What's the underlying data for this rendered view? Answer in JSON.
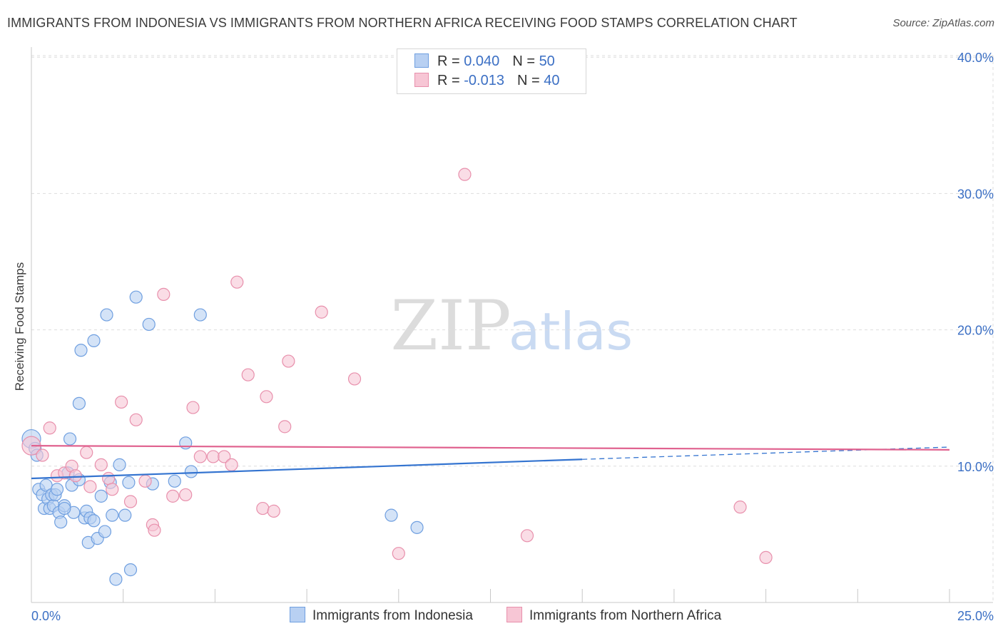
{
  "title": "IMMIGRANTS FROM INDONESIA VS IMMIGRANTS FROM NORTHERN AFRICA RECEIVING FOOD STAMPS CORRELATION CHART",
  "source": "Source: ZipAtlas.com",
  "watermark": {
    "zip": "ZIP",
    "atlas": "atlas"
  },
  "legend": {
    "rows": [
      {
        "r_label": "R = ",
        "r_value": "0.040",
        "n_label": "N = ",
        "n_value": "50"
      },
      {
        "r_label": "R = ",
        "r_value": "-0.013",
        "n_label": "N = ",
        "n_value": "40"
      }
    ]
  },
  "bottom_legend": {
    "series1": "Immigrants from Indonesia",
    "series2": "Immigrants from Northern Africa"
  },
  "colors": {
    "blue_fill": "#b8d0f2",
    "blue_stroke": "#6f9fe0",
    "blue_line": "#3474d0",
    "pink_fill": "#f7c6d5",
    "pink_stroke": "#e890ac",
    "pink_line": "#e0628f",
    "tick_label": "#3b6fc4",
    "grid": "#dddddd"
  },
  "chart_data": {
    "type": "scatter",
    "title": "IMMIGRANTS FROM INDONESIA VS IMMIGRANTS FROM NORTHERN AFRICA RECEIVING FOOD STAMPS CORRELATION CHART",
    "xlabel": "",
    "ylabel": "Receiving Food Stamps",
    "xlim": [
      0,
      25
    ],
    "ylim": [
      0,
      41
    ],
    "x_tick_labels": [
      "0.0%",
      "25.0%"
    ],
    "y_ticks": [
      10,
      20,
      30,
      40
    ],
    "y_tick_labels": [
      "10.0%",
      "20.0%",
      "30.0%",
      "40.0%"
    ],
    "series": [
      {
        "name": "Immigrants from Indonesia",
        "r": 0.04,
        "n": 50,
        "trend": {
          "x0": 0,
          "y0": 9.1,
          "x1": 15,
          "y1": 10.5,
          "dashed_to_x": 25,
          "dashed_to_y": 11.4
        },
        "points": [
          [
            0.0,
            12.0
          ],
          [
            0.1,
            11.3
          ],
          [
            0.15,
            10.8
          ],
          [
            0.2,
            8.3
          ],
          [
            0.3,
            7.9
          ],
          [
            0.35,
            6.9
          ],
          [
            0.4,
            8.6
          ],
          [
            0.45,
            7.6
          ],
          [
            0.5,
            6.9
          ],
          [
            0.55,
            7.9
          ],
          [
            0.6,
            7.1
          ],
          [
            0.65,
            7.9
          ],
          [
            0.7,
            8.3
          ],
          [
            0.75,
            6.6
          ],
          [
            0.8,
            5.9
          ],
          [
            0.9,
            7.1
          ],
          [
            1.0,
            9.5
          ],
          [
            1.05,
            12.0
          ],
          [
            1.1,
            8.6
          ],
          [
            1.15,
            6.6
          ],
          [
            1.3,
            9.0
          ],
          [
            1.3,
            14.6
          ],
          [
            1.35,
            18.5
          ],
          [
            1.45,
            6.2
          ],
          [
            1.5,
            6.7
          ],
          [
            1.55,
            4.4
          ],
          [
            1.6,
            6.2
          ],
          [
            1.7,
            6.0
          ],
          [
            1.7,
            19.2
          ],
          [
            1.8,
            4.7
          ],
          [
            1.9,
            7.8
          ],
          [
            2.0,
            5.2
          ],
          [
            2.05,
            21.1
          ],
          [
            2.15,
            8.8
          ],
          [
            2.2,
            6.4
          ],
          [
            2.3,
            1.7
          ],
          [
            2.4,
            10.1
          ],
          [
            2.55,
            6.4
          ],
          [
            2.7,
            2.4
          ],
          [
            2.85,
            22.4
          ],
          [
            3.2,
            20.4
          ],
          [
            3.3,
            8.7
          ],
          [
            4.2,
            11.7
          ],
          [
            4.35,
            9.6
          ],
          [
            4.6,
            21.1
          ],
          [
            9.8,
            6.4
          ],
          [
            10.5,
            5.5
          ],
          [
            3.9,
            8.9
          ],
          [
            0.9,
            6.9
          ],
          [
            2.65,
            8.8
          ]
        ]
      },
      {
        "name": "Immigrants from Northern Africa",
        "r": -0.013,
        "n": 40,
        "trend": {
          "x0": 0,
          "y0": 11.5,
          "x1": 25,
          "y1": 11.2
        },
        "points": [
          [
            0.0,
            11.5
          ],
          [
            0.3,
            10.8
          ],
          [
            0.5,
            12.8
          ],
          [
            0.7,
            9.3
          ],
          [
            0.9,
            9.5
          ],
          [
            1.1,
            10.0
          ],
          [
            1.2,
            9.3
          ],
          [
            1.5,
            11.0
          ],
          [
            1.6,
            8.5
          ],
          [
            1.9,
            10.1
          ],
          [
            2.1,
            9.1
          ],
          [
            2.2,
            8.3
          ],
          [
            2.45,
            14.7
          ],
          [
            2.7,
            7.4
          ],
          [
            2.85,
            13.4
          ],
          [
            3.1,
            8.9
          ],
          [
            3.3,
            5.7
          ],
          [
            3.35,
            5.3
          ],
          [
            3.6,
            22.6
          ],
          [
            3.85,
            7.8
          ],
          [
            4.2,
            7.9
          ],
          [
            4.4,
            14.3
          ],
          [
            4.6,
            10.7
          ],
          [
            4.95,
            10.7
          ],
          [
            5.25,
            10.7
          ],
          [
            5.45,
            10.1
          ],
          [
            5.6,
            23.5
          ],
          [
            5.9,
            16.7
          ],
          [
            6.3,
            6.9
          ],
          [
            6.4,
            15.1
          ],
          [
            6.6,
            6.7
          ],
          [
            6.9,
            12.9
          ],
          [
            7.0,
            17.7
          ],
          [
            7.9,
            21.3
          ],
          [
            8.8,
            16.4
          ],
          [
            10.0,
            3.6
          ],
          [
            11.8,
            31.4
          ],
          [
            13.5,
            4.9
          ],
          [
            19.3,
            7.0
          ],
          [
            20.0,
            3.3
          ]
        ]
      }
    ]
  }
}
